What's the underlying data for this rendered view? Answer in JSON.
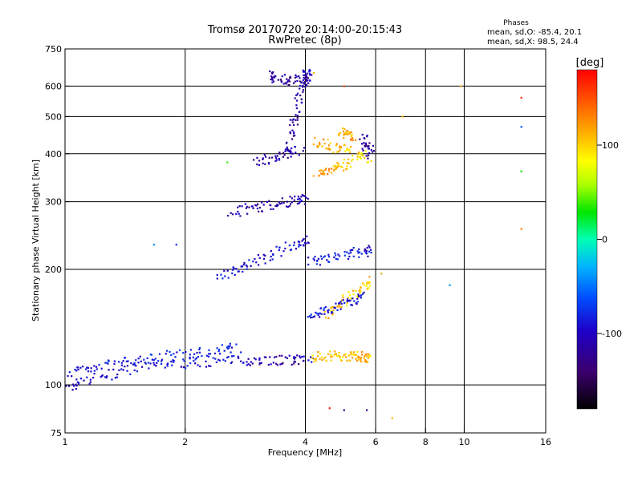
{
  "chart_data": {
    "type": "scatter",
    "title": "Tromsø 20170720 20:14:00-20:15:43",
    "subtitle": "RwPretec (8p)",
    "xlabel": "Frequency [MHz]",
    "ylabel": "Stationary phase Virtual Height [km]",
    "x_scale": "log",
    "y_scale": "log",
    "xlim": [
      1,
      16
    ],
    "ylim": [
      75,
      750
    ],
    "xticks": [
      1,
      2,
      4,
      6,
      8,
      10,
      16
    ],
    "xtick_labels": [
      "1",
      "2",
      "4",
      "6",
      "8",
      "10",
      "16"
    ],
    "yticks": [
      75,
      100,
      200,
      300,
      400,
      500,
      600,
      750
    ],
    "ytick_labels": [
      "75",
      "100",
      "200",
      "300",
      "400",
      "500",
      "600",
      "750"
    ],
    "grid_x": [
      2,
      4,
      6,
      8,
      10,
      16
    ],
    "grid_y": [
      100,
      200,
      300,
      400,
      500,
      600
    ],
    "grid": true,
    "legend": {
      "title": "Phases",
      "lines": [
        "mean, sd,O: -85.4, 20.1",
        "mean, sd,X:  98.5, 24.4"
      ]
    },
    "colorbar": {
      "label": "[deg]",
      "min": -180,
      "max": 180,
      "ticks": [
        100,
        0,
        -100
      ],
      "tick_labels": [
        "100",
        "0",
        "-100"
      ]
    },
    "traces": [
      {
        "x": [
          1.0,
          1.1,
          1.3,
          1.5,
          1.7,
          2.0,
          2.3,
          2.7,
          3.0,
          3.4,
          3.8,
          4.1
        ],
        "y": [
          97,
          103,
          106,
          111,
          113,
          114,
          115,
          116,
          116,
          116,
          116,
          116
        ],
        "phase": [
          -110,
          -105,
          -100,
          -95,
          -90,
          -90,
          -95,
          -100,
          -110,
          -115,
          -110,
          -105
        ]
      },
      {
        "x": [
          1.0,
          1.15,
          1.3,
          1.5,
          1.8,
          2.1,
          2.4,
          2.7
        ],
        "y": [
          108,
          111,
          113,
          116,
          119,
          121,
          123,
          125
        ],
        "phase": [
          -95,
          -90,
          -85,
          -85,
          -80,
          -80,
          -85,
          -90
        ]
      },
      {
        "x": [
          4.2,
          4.5,
          4.8,
          5.1,
          5.4,
          5.6,
          5.75
        ],
        "y": [
          118,
          119,
          119,
          119,
          119,
          118,
          117
        ],
        "phase": [
          100,
          110,
          105,
          100,
          110,
          120,
          100
        ]
      },
      {
        "x": [
          2.6,
          2.9,
          3.2,
          3.5,
          3.8,
          4.0
        ],
        "y": [
          280,
          288,
          292,
          298,
          303,
          305
        ],
        "phase": [
          -110,
          -115,
          -120,
          -115,
          -110,
          -100
        ]
      },
      {
        "x": [
          2.4,
          2.7,
          3.0,
          3.4,
          3.8,
          4.1
        ],
        "y": [
          192,
          200,
          210,
          222,
          232,
          240
        ],
        "phase": [
          -90,
          -95,
          -100,
          -100,
          -95,
          -90
        ]
      },
      {
        "x": [
          3.6,
          3.7,
          3.8,
          3.9,
          4.0,
          4.05
        ],
        "y": [
          400,
          460,
          520,
          580,
          630,
          660
        ],
        "phase": [
          -110,
          -115,
          -120,
          -115,
          -110,
          -105
        ]
      },
      {
        "x": [
          3.2,
          3.4,
          3.6,
          3.9,
          4.1
        ],
        "y": [
          640,
          630,
          620,
          625,
          630
        ],
        "phase": [
          -120,
          -120,
          -125,
          -120,
          -115
        ]
      },
      {
        "x": [
          4.5,
          4.8,
          5.2,
          5.6,
          5.8
        ],
        "y": [
          150,
          160,
          170,
          180,
          190
        ],
        "phase": [
          110,
          105,
          100,
          95,
          100
        ]
      },
      {
        "x": [
          4.2,
          4.6,
          5.0,
          5.4,
          5.8
        ],
        "y": [
          430,
          420,
          410,
          400,
          390
        ],
        "phase": [
          120,
          110,
          100,
          95,
          90
        ]
      },
      {
        "x": [
          4.3,
          4.6,
          4.9,
          5.2
        ],
        "y": [
          355,
          365,
          370,
          380
        ],
        "phase": [
          110,
          120,
          105,
          100
        ]
      },
      {
        "x": [
          4.1,
          4.5,
          5.0,
          5.5,
          5.9
        ],
        "y": [
          210,
          212,
          218,
          222,
          225
        ],
        "phase": [
          -100,
          -90,
          -85,
          -90,
          -95
        ]
      },
      {
        "x": [
          4.1,
          4.4,
          4.8,
          5.2,
          5.6
        ],
        "y": [
          150,
          155,
          160,
          165,
          170
        ],
        "phase": [
          -90,
          -85,
          -90,
          -95,
          -100
        ]
      },
      {
        "x": [
          5.55,
          5.7,
          5.85
        ],
        "y": [
          440,
          420,
          400
        ],
        "phase": [
          -120,
          -120,
          -115
        ]
      },
      {
        "x": [
          4.9,
          5.1,
          5.3
        ],
        "y": [
          455,
          450,
          445
        ],
        "phase": [
          115,
          110,
          120
        ]
      },
      {
        "x": [
          3.0,
          3.3,
          3.6,
          3.9
        ],
        "y": [
          380,
          390,
          400,
          410
        ],
        "phase": [
          -115,
          -120,
          -118,
          -110
        ]
      }
    ],
    "outliers": [
      {
        "x": 1.67,
        "y": 232,
        "phase": -40
      },
      {
        "x": 1.9,
        "y": 232,
        "phase": -80
      },
      {
        "x": 2.55,
        "y": 380,
        "phase": 40
      },
      {
        "x": 4.2,
        "y": 650,
        "phase": 110
      },
      {
        "x": 5.0,
        "y": 600,
        "phase": 150
      },
      {
        "x": 6.6,
        "y": 82,
        "phase": 110
      },
      {
        "x": 7.0,
        "y": 500,
        "phase": 110
      },
      {
        "x": 6.2,
        "y": 195,
        "phase": -100
      },
      {
        "x": 6.2,
        "y": 195,
        "phase": 95
      },
      {
        "x": 9.2,
        "y": 182,
        "phase": -40
      },
      {
        "x": 9.8,
        "y": 600,
        "phase": 110
      },
      {
        "x": 13.9,
        "y": 560,
        "phase": 160
      },
      {
        "x": 13.9,
        "y": 470,
        "phase": -60
      },
      {
        "x": 13.9,
        "y": 360,
        "phase": 30
      },
      {
        "x": 13.9,
        "y": 255,
        "phase": 130
      },
      {
        "x": 4.6,
        "y": 87,
        "phase": 170
      },
      {
        "x": 5.0,
        "y": 86,
        "phase": -120
      },
      {
        "x": 5.7,
        "y": 86,
        "phase": -130
      }
    ]
  }
}
